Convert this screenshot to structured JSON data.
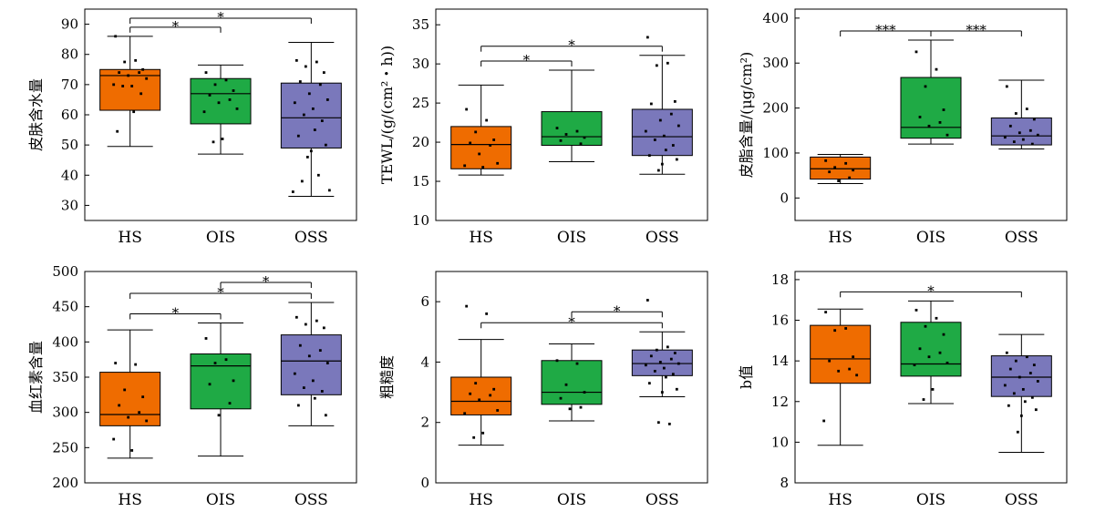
{
  "chart_data": [
    {
      "type": "box",
      "ylabel": "皮肤含水量",
      "categories": [
        "HS",
        "OIS",
        "OSS"
      ],
      "colors": [
        "#ef6c00",
        "#1faa45",
        "#7a78bb"
      ],
      "ylim": [
        25,
        95
      ],
      "yticks": [
        30,
        40,
        50,
        60,
        70,
        80,
        90
      ],
      "boxes": [
        {
          "whisker_low": 49.5,
          "q1": 61.5,
          "median": 73,
          "q3": 75,
          "whisker_high": 86
        },
        {
          "whisker_low": 47,
          "q1": 57,
          "median": 67,
          "q3": 72,
          "whisker_high": 76.5
        },
        {
          "whisker_low": 33,
          "q1": 49,
          "median": 59,
          "q3": 70.5,
          "whisker_high": 84
        }
      ],
      "points": [
        [
          86,
          78,
          77.5,
          75,
          74,
          74,
          73,
          72,
          70,
          69.5,
          69.5,
          67,
          61,
          54.5
        ],
        [
          74,
          71.5,
          70,
          68,
          66.5,
          65,
          64,
          62,
          61,
          52,
          51
        ],
        [
          78,
          77.5,
          76,
          74,
          71,
          70,
          67,
          65,
          64,
          62,
          60,
          58,
          55,
          53,
          50,
          48,
          46,
          40,
          38,
          35,
          34.5
        ]
      ],
      "significance": [
        {
          "from": 0,
          "to": 1,
          "label": "*"
        },
        {
          "from": 0,
          "to": 2,
          "label": "*"
        }
      ]
    },
    {
      "type": "box",
      "ylabel": "TEWL/(g/(cm²・h))",
      "categories": [
        "HS",
        "OIS",
        "OSS"
      ],
      "colors": [
        "#ef6c00",
        "#1faa45",
        "#7a78bb"
      ],
      "ylim": [
        10,
        37
      ],
      "yticks": [
        10,
        15,
        20,
        25,
        30,
        35
      ],
      "boxes": [
        {
          "whisker_low": 15.8,
          "q1": 16.6,
          "median": 19.7,
          "q3": 22,
          "whisker_high": 27.3
        },
        {
          "whisker_low": 17.5,
          "q1": 19.6,
          "median": 20.7,
          "q3": 23.9,
          "whisker_high": 29.2
        },
        {
          "whisker_low": 15.9,
          "q1": 18.3,
          "median": 20.7,
          "q3": 24.2,
          "whisker_high": 31.1
        }
      ],
      "points": [
        [
          24.2,
          22.8,
          21.3,
          20.3,
          19.9,
          19.6,
          18.5,
          17.3,
          17,
          16.8
        ],
        [
          21.8,
          21.4,
          21,
          20.6,
          20.2,
          19.8
        ],
        [
          33.4,
          30.1,
          29.8,
          25.2,
          24.9,
          23.6,
          22.8,
          22.1,
          21.4,
          20.8,
          20.3,
          19.6,
          19,
          18.3,
          17.8,
          17.2,
          16.4
        ]
      ],
      "significance": [
        {
          "from": 0,
          "to": 1,
          "label": "*"
        },
        {
          "from": 0,
          "to": 2,
          "label": "*"
        }
      ]
    },
    {
      "type": "box",
      "ylabel": "皮脂含量/(μg/cm²)",
      "categories": [
        "HS",
        "OIS",
        "OSS"
      ],
      "colors": [
        "#ef6c00",
        "#1faa45",
        "#7a78bb"
      ],
      "ylim": [
        -50,
        420
      ],
      "yticks": [
        0,
        100,
        200,
        300,
        400
      ],
      "boxes": [
        {
          "whisker_low": 32,
          "q1": 42,
          "median": 65,
          "q3": 91,
          "whisker_high": 97
        },
        {
          "whisker_low": 120,
          "q1": 133,
          "median": 157,
          "q3": 268,
          "whisker_high": 351
        },
        {
          "whisker_low": 109,
          "q1": 118,
          "median": 138,
          "q3": 178,
          "whisker_high": 262
        }
      ],
      "points": [
        [
          83,
          77,
          68,
          62,
          58,
          45,
          38
        ],
        [
          325,
          286,
          248,
          196,
          180,
          168,
          160,
          140
        ],
        [
          248,
          198,
          188,
          175,
          160,
          150,
          145,
          140,
          135,
          130,
          125,
          120
        ]
      ],
      "significance": [
        {
          "from": 0,
          "to": 1,
          "label": "***"
        },
        {
          "from": 1,
          "to": 2,
          "label": "***"
        }
      ]
    },
    {
      "type": "box",
      "ylabel": "血红素含量",
      "categories": [
        "HS",
        "OIS",
        "OSS"
      ],
      "colors": [
        "#ef6c00",
        "#1faa45",
        "#7a78bb"
      ],
      "ylim": [
        200,
        500
      ],
      "yticks": [
        200,
        250,
        300,
        350,
        400,
        450,
        500
      ],
      "boxes": [
        {
          "whisker_low": 235,
          "q1": 281,
          "median": 297,
          "q3": 357,
          "whisker_high": 417
        },
        {
          "whisker_low": 238,
          "q1": 305,
          "median": 366,
          "q3": 383,
          "whisker_high": 427
        },
        {
          "whisker_low": 281,
          "q1": 325,
          "median": 373,
          "q3": 410,
          "whisker_high": 456
        }
      ],
      "points": [
        [
          370,
          368,
          332,
          322,
          310,
          300,
          293,
          288,
          262,
          246
        ],
        [
          405,
          375,
          370,
          345,
          340,
          313,
          296
        ],
        [
          435,
          430,
          425,
          420,
          395,
          388,
          380,
          370,
          355,
          345,
          335,
          330,
          320,
          310,
          296
        ]
      ],
      "significance": [
        {
          "from": 0,
          "to": 1,
          "label": "*"
        },
        {
          "from": 0,
          "to": 2,
          "label": "*"
        },
        {
          "from": 1,
          "to": 2,
          "label": "*"
        }
      ]
    },
    {
      "type": "box",
      "ylabel": "粗糙度",
      "categories": [
        "HS",
        "OIS",
        "OSS"
      ],
      "colors": [
        "#ef6c00",
        "#1faa45",
        "#7a78bb"
      ],
      "ylim": [
        0,
        7
      ],
      "yticks": [
        0,
        2,
        4,
        6
      ],
      "boxes": [
        {
          "whisker_low": 1.25,
          "q1": 2.25,
          "median": 2.7,
          "q3": 3.5,
          "whisker_high": 4.75
        },
        {
          "whisker_low": 2.05,
          "q1": 2.6,
          "median": 3.0,
          "q3": 4.05,
          "whisker_high": 4.6
        },
        {
          "whisker_low": 2.85,
          "q1": 3.55,
          "median": 3.95,
          "q3": 4.4,
          "whisker_high": 5.0
        }
      ],
      "points": [
        [
          5.85,
          5.6,
          3.3,
          3.1,
          2.95,
          2.9,
          2.75,
          2.4,
          2.3,
          1.65,
          1.5
        ],
        [
          4.05,
          3.95,
          3.25,
          3.0,
          2.8,
          2.5,
          2.45
        ],
        [
          6.05,
          4.5,
          4.4,
          4.3,
          4.2,
          4.1,
          4.0,
          3.95,
          3.9,
          3.8,
          3.7,
          3.6,
          3.5,
          3.3,
          3.1,
          3.0,
          2.0,
          1.95
        ]
      ],
      "significance": [
        {
          "from": 0,
          "to": 2,
          "label": "*"
        },
        {
          "from": 1,
          "to": 2,
          "label": "*"
        }
      ]
    },
    {
      "type": "box",
      "ylabel": "b值",
      "categories": [
        "HS",
        "OIS",
        "OSS"
      ],
      "colors": [
        "#ef6c00",
        "#1faa45",
        "#7a78bb"
      ],
      "ylim": [
        8,
        18.4
      ],
      "yticks": [
        8,
        10,
        12,
        14,
        16,
        18
      ],
      "boxes": [
        {
          "whisker_low": 9.85,
          "q1": 12.9,
          "median": 14.1,
          "q3": 15.75,
          "whisker_high": 16.55
        },
        {
          "whisker_low": 11.9,
          "q1": 13.25,
          "median": 13.85,
          "q3": 15.9,
          "whisker_high": 16.95
        },
        {
          "whisker_low": 9.5,
          "q1": 12.25,
          "median": 13.2,
          "q3": 14.25,
          "whisker_high": 15.3
        }
      ],
      "points": [
        [
          16.4,
          15.6,
          15.5,
          14.2,
          14.0,
          13.6,
          13.5,
          13.3,
          11.05
        ],
        [
          16.5,
          16.1,
          15.7,
          15.3,
          14.6,
          14.4,
          14.2,
          13.9,
          13.8,
          12.6,
          12.1
        ],
        [
          14.4,
          14.2,
          14.0,
          13.8,
          13.6,
          13.4,
          13.2,
          13.0,
          12.8,
          12.6,
          12.4,
          12.2,
          12.0,
          11.8,
          11.6,
          11.3,
          10.5
        ]
      ],
      "significance": [
        {
          "from": 0,
          "to": 2,
          "label": "*"
        }
      ]
    }
  ]
}
